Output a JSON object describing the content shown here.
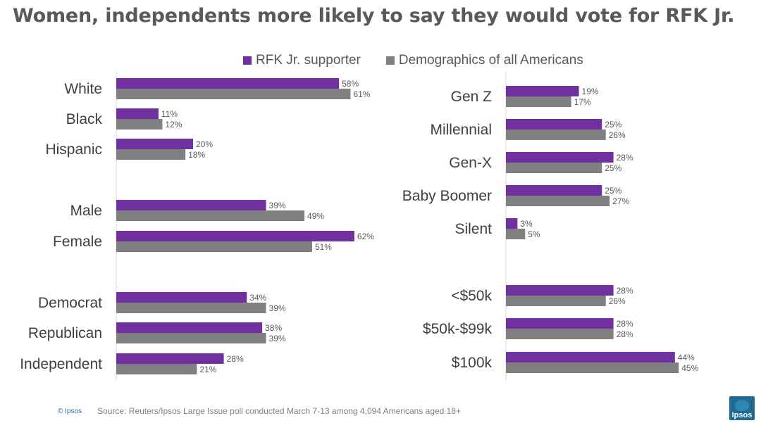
{
  "title": "Women, independents more likely to say they would vote for RFK Jr.",
  "legend": [
    {
      "name": "RFK Jr. supporter",
      "color": "#7030a0"
    },
    {
      "name": "Demographics of all Americans",
      "color": "#808080"
    }
  ],
  "footer": {
    "copyright": "© Ipsos",
    "source": "Source: Reuters/Ipsos  Large Issue poll conducted March 7-13 among 4,094 Americans aged 18+"
  },
  "logo_text": "Ipsos",
  "chart_data": [
    {
      "type": "bar",
      "orientation": "horizontal",
      "panel": "left",
      "xlim": [
        0,
        100
      ],
      "groups": [
        {
          "categories": [
            "White",
            "Black",
            "Hispanic"
          ]
        },
        {
          "categories": [
            "Male",
            "Female"
          ]
        },
        {
          "categories": [
            "Democrat",
            "Republican",
            "Independent"
          ]
        }
      ],
      "categories": [
        "White",
        "Black",
        "Hispanic",
        "Male",
        "Female",
        "Democrat",
        "Republican",
        "Independent"
      ],
      "series": [
        {
          "name": "RFK Jr. supporter",
          "values": [
            58,
            11,
            20,
            39,
            62,
            34,
            38,
            28
          ]
        },
        {
          "name": "Demographics of all Americans",
          "values": [
            61,
            12,
            18,
            49,
            51,
            39,
            39,
            21
          ]
        }
      ]
    },
    {
      "type": "bar",
      "orientation": "horizontal",
      "panel": "right",
      "xlim": [
        0,
        100
      ],
      "groups": [
        {
          "categories": [
            "Gen Z",
            "Millennial",
            "Gen-X",
            "Baby Boomer",
            "Silent"
          ]
        },
        {
          "categories": [
            "<$50k",
            "$50k-$99k",
            "$100k"
          ]
        }
      ],
      "categories": [
        "Gen Z",
        "Millennial",
        "Gen-X",
        "Baby Boomer",
        "Silent",
        "<$50k",
        "$50k-$99k",
        "$100k"
      ],
      "series": [
        {
          "name": "RFK Jr. supporter",
          "values": [
            19,
            25,
            28,
            25,
            3,
            28,
            28,
            44
          ]
        },
        {
          "name": "Demographics of all Americans",
          "values": [
            17,
            26,
            25,
            27,
            5,
            26,
            28,
            45
          ]
        }
      ]
    }
  ]
}
